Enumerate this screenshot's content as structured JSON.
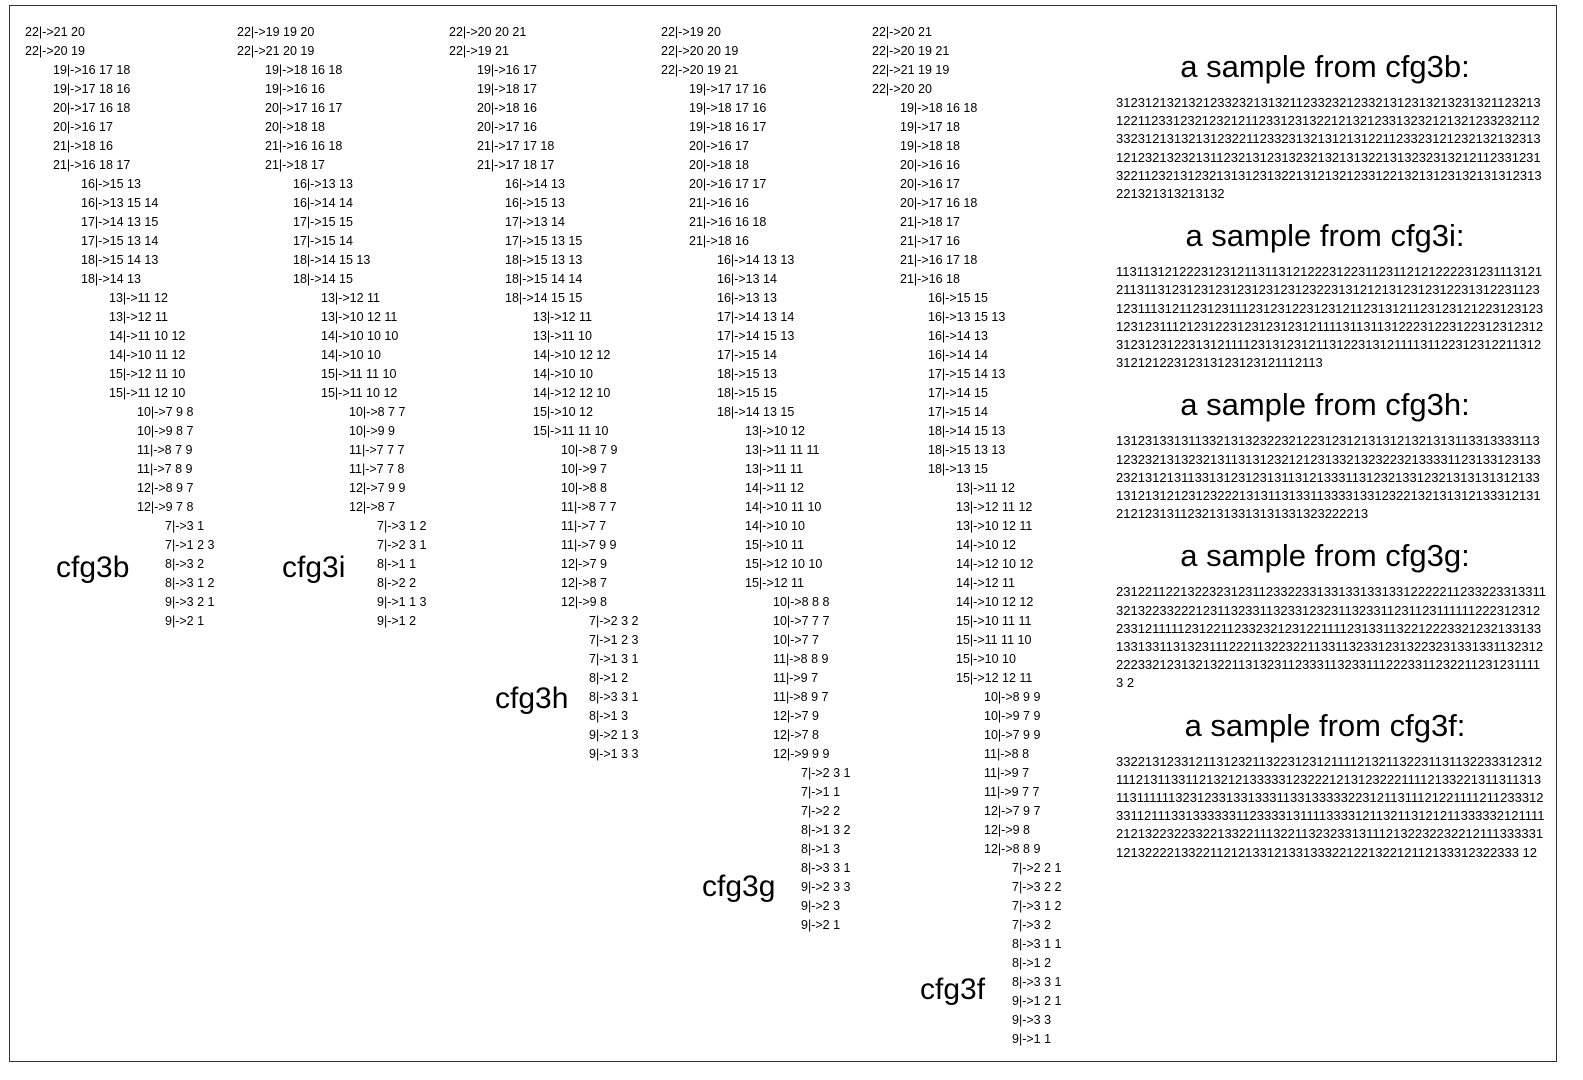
{
  "grammars": [
    {
      "name": "cfg3b",
      "groups": [
        [
          "22|->21 20",
          "22|->20 19"
        ],
        [
          "19|->16 17 18",
          "19|->17 18 16",
          "20|->17 16 18",
          "20|->16 17",
          "21|->18 16",
          "21|->16 18 17"
        ],
        [
          "16|->15 13",
          "16|->13 15 14",
          "17|->14 13 15",
          "17|->15 13 14",
          "18|->15 14 13",
          "18|->14 13"
        ],
        [
          "13|->11 12",
          "13|->12 11",
          "14|->11 10 12",
          "14|->10 11 12",
          "15|->12 11 10",
          "15|->11 12 10"
        ],
        [
          "10|->7 9 8",
          "10|->9 8 7",
          "11|->8 7 9",
          "11|->7 8 9",
          "12|->8 9 7",
          "12|->9 7 8"
        ],
        [
          "7|->3 1",
          "7|->1 2 3",
          "8|->3 2",
          "8|->3 1 2",
          "9|->3 2 1",
          "9|->2 1"
        ]
      ]
    },
    {
      "name": "cfg3i",
      "groups": [
        [
          "22|->19 19 20",
          "22|->21 20 19"
        ],
        [
          "19|->18 16 18",
          "19|->16 16",
          "20|->17 16 17",
          "20|->18 18",
          "21|->16 16 18",
          "21|->18 17"
        ],
        [
          "16|->13 13",
          "16|->14 14",
          "17|->15 15",
          "17|->15 14",
          "18|->14 15 13",
          "18|->14 15"
        ],
        [
          "13|->12 11",
          "13|->10 12 11",
          "14|->10 10 10",
          "14|->10 10",
          "15|->11 11 10",
          "15|->11 10 12"
        ],
        [
          "10|->8 7 7",
          "10|->9 9",
          "11|->7 7 7",
          "11|->7 7 8",
          "12|->7 9 9",
          "12|->8 7"
        ],
        [
          "7|->3 1 2",
          "7|->2 3 1",
          "8|->1 1",
          "8|->2 2",
          "9|->1 1 3",
          "9|->1 2"
        ]
      ]
    },
    {
      "name": "cfg3h",
      "groups": [
        [
          "22|->20 20 21",
          "22|->19 21"
        ],
        [
          "19|->16 17",
          "19|->18 17",
          "20|->18 16",
          "20|->17 16",
          "21|->17 17 18",
          "21|->17 18 17"
        ],
        [
          "16|->14 13",
          "16|->15 13",
          "17|->13 14",
          "17|->15 13 15",
          "18|->15 13 13",
          "18|->15 14 14",
          "18|->14 15 15"
        ],
        [
          "13|->12 11",
          "13|->11 10",
          "14|->10 12 12",
          "14|->10 10",
          "14|->12 12 10",
          "15|->10 12",
          "15|->11 11 10"
        ],
        [
          "10|->8 7 9",
          "10|->9 7",
          "10|->8 8",
          "11|->8 7 7",
          "11|->7 7",
          "11|->7 9 9",
          "12|->7 9",
          "12|->8 7",
          "12|->9 8"
        ],
        [
          "7|->2 3 2",
          "7|->1 2 3",
          "7|->1 3 1",
          "8|->1 2",
          "8|->3 3 1",
          "8|->1 3",
          "9|->2 1 3",
          "9|->1 3 3"
        ]
      ]
    },
    {
      "name": "cfg3g",
      "groups": [
        [
          "22|->19 20",
          "22|->20 20 19",
          "22|->20 19 21"
        ],
        [
          "19|->17 17 16",
          "19|->18 17 16",
          "19|->18 16 17",
          "20|->16 17",
          "20|->18 18",
          "20|->16 17 17",
          "21|->16 16",
          "21|->16 16 18",
          "21|->18 16"
        ],
        [
          "16|->14 13 13",
          "16|->13 14",
          "16|->13 13",
          "17|->14 13 14",
          "17|->14 15 13",
          "17|->15 14",
          "18|->15 13",
          "18|->15 15",
          "18|->14 13 15"
        ],
        [
          "13|->10 12",
          "13|->11 11 11",
          "13|->11 11",
          "14|->11 12",
          "14|->10 11 10",
          "14|->10 10",
          "15|->10 11",
          "15|->12 10 10",
          "15|->12 11"
        ],
        [
          "10|->8 8 8",
          "10|->7 7 7",
          "10|->7 7",
          "11|->8 8 9",
          "11|->9 7",
          "11|->8 9 7",
          "12|->7 9",
          "12|->7 8",
          "12|->9 9 9"
        ],
        [
          "7|->2 3 1",
          "7|->1 1",
          "7|->2 2",
          "8|->1 3 2",
          "8|->1 3",
          "8|->3 3 1",
          "9|->2 3 3",
          "9|->2 3",
          "9|->2 1"
        ]
      ]
    },
    {
      "name": "cfg3f",
      "groups": [
        [
          "22|->20 21",
          "22|->20 19 21",
          "22|->21 19 19",
          "22|->20 20"
        ],
        [
          "19|->18 16 18",
          "19|->17 18",
          "19|->18 18",
          "20|->16 16",
          "20|->16 17",
          "20|->17 16 18",
          "21|->18 17",
          "21|->17 16",
          "21|->16 17 18",
          "21|->16 18"
        ],
        [
          "16|->15 15",
          "16|->13 15 13",
          "16|->14 13",
          "16|->14 14",
          "17|->15 14 13",
          "17|->14 15",
          "17|->15 14",
          "18|->14 15 13",
          "18|->15 13 13",
          "18|->13 15"
        ],
        [
          "13|->11 12",
          "13|->12 11 12",
          "13|->10 12 11",
          "14|->10 12",
          "14|->12 10 12",
          "14|->12 11",
          "14|->10 12 12",
          "15|->10 11 11",
          "15|->11 11 10",
          "15|->10 10",
          "15|->12 12 11"
        ],
        [
          "10|->8 9 9",
          "10|->9 7 9",
          "10|->7 9 9",
          "11|->8 8",
          "11|->9 7",
          "11|->9 7 7",
          "12|->7 9 7",
          "12|->9 8",
          "12|->8 8 9"
        ],
        [
          "7|->2 2 1",
          "7|->3 2 2",
          "7|->3 1 2",
          "7|->3 2",
          "8|->3 1 1",
          "8|->1 2",
          "8|->3 3 1",
          "9|->1 2 1",
          "9|->3 3",
          "9|->1 1"
        ]
      ]
    }
  ],
  "samples": [
    {
      "title": "a sample from cfg3b:",
      "text": "3123121321321233232131321123323212332131231321323132112321312211233123212321211233123132212132123313232121321233232112332312131321312322112332313213121312211233231212321321323131212321323213112321312313232132131322131323231321211233123132211232131232131312313221312132123312213213123132131312313221321313213132"
    },
    {
      "title": "a sample from cfg3i:",
      "text": "1131131212223123121131131212223122311231121212222312311131212113113123123123123123123123223131212131231231223131223112312311131211231231112312312231231211231312112312312122312312312312311121231223123123123121111311311312223122312231231231231231231223131211112313123121131223131211113112231231221131231212122312313123123121112113"
    },
    {
      "title": "a sample from cfg3h:",
      "text": "1312313313113321313232232122312312131312132131311331333311312323213132321311313123212123133213232232133331123133123133232131213113313123123131131213331131232133123213131313121331312131212312322213131131331133331331232213213131213331213121212313112321313313131331323222213"
    },
    {
      "title": "a sample from cfg3g:",
      "text": "2312211221322323123112332233133133133133122222112332233133113213223322212311323311323312323113233112311231111112223123122331211111231221123323212312211112313311322122233212321331331331331131323111222113223221133113233123132232313313311323122223321231321322113132311233311323311122233112322112312311113 2"
    },
    {
      "title": "a sample from cfg3f:",
      "text": "3322131233121131232113223123121111213211322311311322333123121112131133112132121333331232221213123222111121332213113113131131111113231233133133311331333332231211311121221111211233312331121113313333331123333131111333312113211312121133333212111121213223223322133221113221132323313111213223223221211133333112132222133221121213312133133322122132212112133312322333 12"
    }
  ]
}
